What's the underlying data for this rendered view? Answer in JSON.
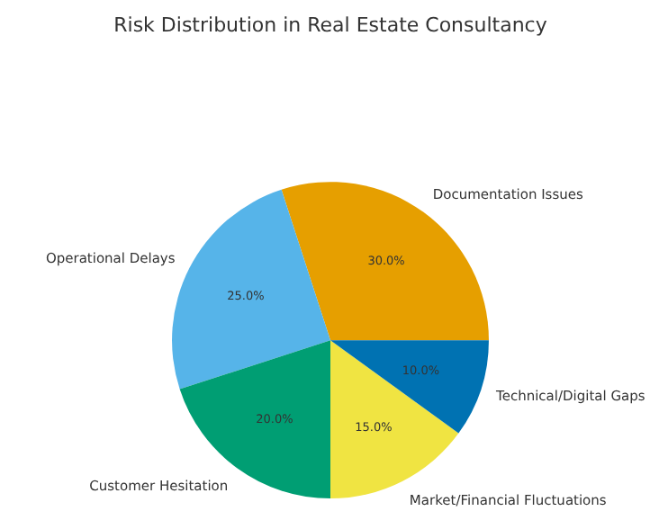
{
  "chart_data": {
    "type": "pie",
    "title": "Risk Distribution in Real Estate Consultancy",
    "categories": [
      "Documentation Issues",
      "Operational Delays",
      "Customer Hesitation",
      "Market/Financial Fluctuations",
      "Technical/Digital Gaps"
    ],
    "values": [
      30,
      25,
      20,
      15,
      10
    ],
    "colors": [
      "#e69f00",
      "#56b4e9",
      "#009e73",
      "#f0e442",
      "#0072b2"
    ],
    "value_labels": [
      "30.0%",
      "25.0%",
      "20.0%",
      "15.0%",
      "10.0%"
    ]
  }
}
